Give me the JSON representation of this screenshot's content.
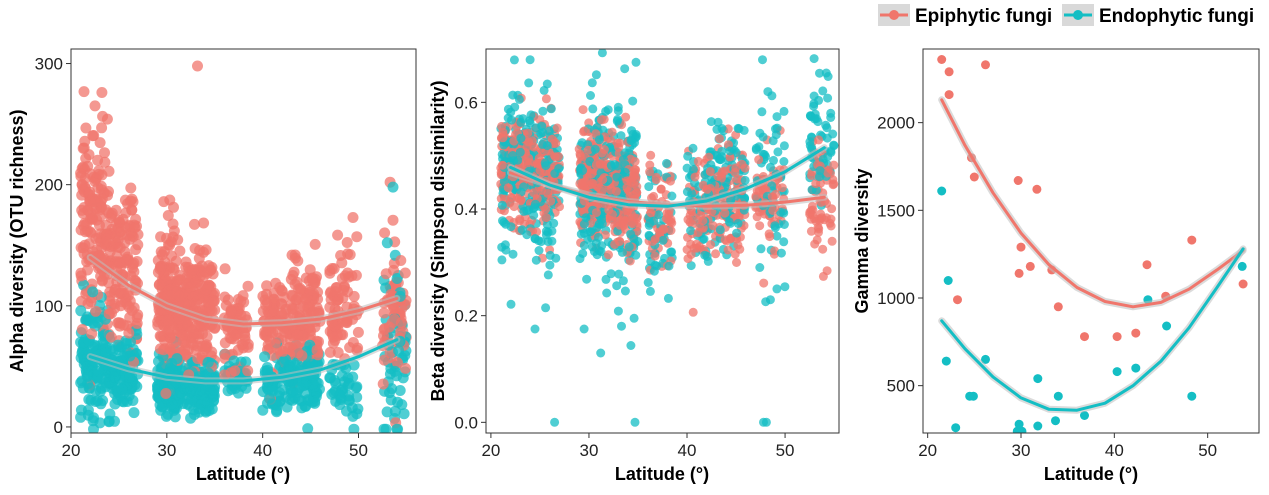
{
  "colors": {
    "epiphytic": "#F0766C",
    "endophytic": "#14BEC4",
    "band": "#BDBDBD"
  },
  "legend": {
    "items": [
      {
        "label": "Epiphytic fungi",
        "series": "epiphytic"
      },
      {
        "label": "Endophytic fungi",
        "series": "endophytic"
      }
    ],
    "placement": "top-right"
  },
  "chart_data": [
    {
      "type": "scatter",
      "xlabel": "Latitude (°)",
      "ylabel": "Alpha diversity (OTU richness)",
      "xlim": [
        20,
        56
      ],
      "ylim": [
        -5,
        312
      ],
      "xticks": [
        20,
        30,
        40,
        50
      ],
      "yticks": [
        0,
        100,
        200,
        300
      ],
      "grid": false,
      "clusters": [
        {
          "series": "epiphytic",
          "x": [
            21,
            24
          ],
          "y_mean": 170,
          "y_sd": 42,
          "n": 160
        },
        {
          "series": "epiphytic",
          "x": [
            24,
            27
          ],
          "y_mean": 130,
          "y_sd": 38,
          "n": 130
        },
        {
          "series": "epiphytic",
          "x": [
            29,
            31.5
          ],
          "y_mean": 105,
          "y_sd": 30,
          "n": 170
        },
        {
          "series": "epiphytic",
          "x": [
            31.5,
            35
          ],
          "y_mean": 95,
          "y_sd": 28,
          "n": 190
        },
        {
          "series": "epiphytic",
          "x": [
            36,
            38.5
          ],
          "y_mean": 85,
          "y_sd": 18,
          "n": 70
        },
        {
          "series": "epiphytic",
          "x": [
            40,
            43
          ],
          "y_mean": 82,
          "y_sd": 18,
          "n": 90
        },
        {
          "series": "epiphytic",
          "x": [
            43,
            46
          ],
          "y_mean": 95,
          "y_sd": 22,
          "n": 110
        },
        {
          "series": "epiphytic",
          "x": [
            47,
            50
          ],
          "y_mean": 102,
          "y_sd": 25,
          "n": 80
        },
        {
          "series": "epiphytic",
          "x": [
            52.5,
            55
          ],
          "y_mean": 95,
          "y_sd": 28,
          "n": 70
        },
        {
          "series": "endophytic",
          "x": [
            21,
            24
          ],
          "y_mean": 55,
          "y_sd": 22,
          "n": 130
        },
        {
          "series": "endophytic",
          "x": [
            24,
            27
          ],
          "y_mean": 45,
          "y_sd": 15,
          "n": 120
        },
        {
          "series": "endophytic",
          "x": [
            29,
            31.5
          ],
          "y_mean": 35,
          "y_sd": 12,
          "n": 140
        },
        {
          "series": "endophytic",
          "x": [
            31.5,
            35
          ],
          "y_mean": 35,
          "y_sd": 10,
          "n": 160
        },
        {
          "series": "endophytic",
          "x": [
            36,
            38.5
          ],
          "y_mean": 42,
          "y_sd": 8,
          "n": 40
        },
        {
          "series": "endophytic",
          "x": [
            40,
            43
          ],
          "y_mean": 38,
          "y_sd": 12,
          "n": 70
        },
        {
          "series": "endophytic",
          "x": [
            43,
            46
          ],
          "y_mean": 40,
          "y_sd": 14,
          "n": 90
        },
        {
          "series": "endophytic",
          "x": [
            47,
            50
          ],
          "y_mean": 30,
          "y_sd": 12,
          "n": 40
        },
        {
          "series": "endophytic",
          "x": [
            52.5,
            55
          ],
          "y_mean": 60,
          "y_sd": 38,
          "n": 55
        }
      ],
      "extra_points": [
        {
          "series": "epiphytic",
          "x": 33.2,
          "y": 298
        },
        {
          "series": "epiphytic",
          "x": 22.5,
          "y": 265
        },
        {
          "series": "epiphytic",
          "x": 53.3,
          "y": 202
        },
        {
          "series": "endophytic",
          "x": 53.6,
          "y": 198
        },
        {
          "series": "endophytic",
          "x": 53,
          "y": 152
        },
        {
          "series": "endophytic",
          "x": 21,
          "y": 8
        }
      ],
      "trend": [
        {
          "series": "epiphytic",
          "x": [
            22,
            26,
            30,
            34,
            38,
            42,
            46,
            50,
            54
          ],
          "y": [
            140,
            117,
            100,
            89,
            85,
            86,
            89,
            96,
            106
          ]
        },
        {
          "series": "endophytic",
          "x": [
            22,
            26,
            30,
            34,
            38,
            42,
            46,
            50,
            54
          ],
          "y": [
            58,
            48,
            41,
            38,
            38,
            41,
            47,
            58,
            72
          ]
        }
      ]
    },
    {
      "type": "scatter",
      "xlabel": "Latitude (°)",
      "ylabel": "Beta diversity (Simpson dissimilarity)",
      "xlim": [
        19.5,
        55.5
      ],
      "ylim": [
        -0.02,
        0.7
      ],
      "xticks": [
        20,
        30,
        40,
        50
      ],
      "yticks": [
        0.0,
        0.2,
        0.4,
        0.6
      ],
      "ytick_labels": [
        "0.0",
        "0.2",
        "0.4",
        "0.6"
      ],
      "grid": false,
      "clusters": [
        {
          "series": "epiphytic",
          "x": [
            21,
            24
          ],
          "y_mean": 0.48,
          "y_sd": 0.05,
          "n": 150
        },
        {
          "series": "epiphytic",
          "x": [
            24,
            27
          ],
          "y_mean": 0.47,
          "y_sd": 0.05,
          "n": 130
        },
        {
          "series": "epiphytic",
          "x": [
            29,
            31.5
          ],
          "y_mean": 0.45,
          "y_sd": 0.05,
          "n": 150
        },
        {
          "series": "epiphytic",
          "x": [
            31.5,
            35
          ],
          "y_mean": 0.43,
          "y_sd": 0.05,
          "n": 170
        },
        {
          "series": "epiphytic",
          "x": [
            36,
            38.5
          ],
          "y_mean": 0.38,
          "y_sd": 0.05,
          "n": 60
        },
        {
          "series": "epiphytic",
          "x": [
            40,
            43
          ],
          "y_mean": 0.4,
          "y_sd": 0.05,
          "n": 80
        },
        {
          "series": "epiphytic",
          "x": [
            43,
            46
          ],
          "y_mean": 0.42,
          "y_sd": 0.05,
          "n": 90
        },
        {
          "series": "epiphytic",
          "x": [
            47,
            50
          ],
          "y_mean": 0.42,
          "y_sd": 0.05,
          "n": 70
        },
        {
          "series": "epiphytic",
          "x": [
            52.5,
            55
          ],
          "y_mean": 0.42,
          "y_sd": 0.06,
          "n": 60
        },
        {
          "series": "endophytic",
          "x": [
            21,
            24
          ],
          "y_mean": 0.47,
          "y_sd": 0.08,
          "n": 130
        },
        {
          "series": "endophytic",
          "x": [
            24,
            27
          ],
          "y_mean": 0.45,
          "y_sd": 0.08,
          "n": 110
        },
        {
          "series": "endophytic",
          "x": [
            29,
            31.5
          ],
          "y_mean": 0.45,
          "y_sd": 0.08,
          "n": 130
        },
        {
          "series": "endophytic",
          "x": [
            31.5,
            35
          ],
          "y_mean": 0.43,
          "y_sd": 0.08,
          "n": 150
        },
        {
          "series": "endophytic",
          "x": [
            36,
            38.5
          ],
          "y_mean": 0.36,
          "y_sd": 0.06,
          "n": 50
        },
        {
          "series": "endophytic",
          "x": [
            40,
            43
          ],
          "y_mean": 0.42,
          "y_sd": 0.06,
          "n": 70
        },
        {
          "series": "endophytic",
          "x": [
            43,
            46
          ],
          "y_mean": 0.45,
          "y_sd": 0.06,
          "n": 90
        },
        {
          "series": "endophytic",
          "x": [
            47,
            50
          ],
          "y_mean": 0.45,
          "y_sd": 0.08,
          "n": 60
        },
        {
          "series": "endophytic",
          "x": [
            52.5,
            55
          ],
          "y_mean": 0.52,
          "y_sd": 0.06,
          "n": 60
        }
      ],
      "extra_points": [
        {
          "series": "endophytic",
          "x": 26.5,
          "y": 0.0
        },
        {
          "series": "endophytic",
          "x": 34.7,
          "y": 0.0
        },
        {
          "series": "endophytic",
          "x": 47.8,
          "y": 0.0
        },
        {
          "series": "endophytic",
          "x": 48.1,
          "y": 0.0
        },
        {
          "series": "endophytic",
          "x": 24.0,
          "y": 0.68
        },
        {
          "series": "endophytic",
          "x": 34.8,
          "y": 0.675
        },
        {
          "series": "endophytic",
          "x": 47.7,
          "y": 0.68
        },
        {
          "series": "endophytic",
          "x": 54.2,
          "y": 0.655
        },
        {
          "series": "endophytic",
          "x": 24.5,
          "y": 0.175
        },
        {
          "series": "endophytic",
          "x": 29.5,
          "y": 0.175
        },
        {
          "series": "endophytic",
          "x": 31.2,
          "y": 0.13
        },
        {
          "series": "endophytic",
          "x": 34.6,
          "y": 0.195
        },
        {
          "series": "endophytic",
          "x": 48.5,
          "y": 0.23
        }
      ],
      "trend": [
        {
          "series": "epiphytic",
          "x": [
            22,
            26,
            30,
            34,
            38,
            42,
            46,
            50,
            54
          ],
          "y": [
            0.468,
            0.445,
            0.426,
            0.414,
            0.408,
            0.405,
            0.407,
            0.413,
            0.422
          ]
        },
        {
          "series": "endophytic",
          "x": [
            22,
            26,
            30,
            34,
            38,
            42,
            46,
            50,
            54
          ],
          "y": [
            0.478,
            0.445,
            0.422,
            0.408,
            0.405,
            0.415,
            0.438,
            0.47,
            0.515
          ]
        }
      ]
    },
    {
      "type": "scatter",
      "xlabel": "Latitude (°)",
      "ylabel": "Gamma diversity",
      "xlim": [
        19.5,
        55.5
      ],
      "ylim": [
        230,
        2420
      ],
      "xticks": [
        20,
        30,
        40,
        50
      ],
      "yticks": [
        500,
        1000,
        1500,
        2000
      ],
      "grid": false,
      "points": [
        {
          "series": "epiphytic",
          "x": 21.5,
          "y": 2360
        },
        {
          "series": "epiphytic",
          "x": 22.3,
          "y": 2290
        },
        {
          "series": "epiphytic",
          "x": 22.3,
          "y": 2160
        },
        {
          "series": "epiphytic",
          "x": 26.2,
          "y": 2330
        },
        {
          "series": "epiphytic",
          "x": 24.7,
          "y": 1800
        },
        {
          "series": "epiphytic",
          "x": 25.0,
          "y": 1690
        },
        {
          "series": "epiphytic",
          "x": 23.2,
          "y": 990
        },
        {
          "series": "epiphytic",
          "x": 29.7,
          "y": 1670
        },
        {
          "series": "epiphytic",
          "x": 31.7,
          "y": 1620
        },
        {
          "series": "epiphytic",
          "x": 30.0,
          "y": 1290
        },
        {
          "series": "epiphytic",
          "x": 31.0,
          "y": 1180
        },
        {
          "series": "epiphytic",
          "x": 29.8,
          "y": 1140
        },
        {
          "series": "epiphytic",
          "x": 33.3,
          "y": 1160
        },
        {
          "series": "epiphytic",
          "x": 34.0,
          "y": 950
        },
        {
          "series": "epiphytic",
          "x": 36.8,
          "y": 780
        },
        {
          "series": "epiphytic",
          "x": 40.3,
          "y": 780
        },
        {
          "series": "epiphytic",
          "x": 42.3,
          "y": 800
        },
        {
          "series": "epiphytic",
          "x": 43.5,
          "y": 1190
        },
        {
          "series": "epiphytic",
          "x": 45.5,
          "y": 1010
        },
        {
          "series": "epiphytic",
          "x": 48.3,
          "y": 1330
        },
        {
          "series": "epiphytic",
          "x": 53.8,
          "y": 1080
        },
        {
          "series": "endophytic",
          "x": 21.5,
          "y": 1610
        },
        {
          "series": "endophytic",
          "x": 22.2,
          "y": 1100
        },
        {
          "series": "endophytic",
          "x": 22.0,
          "y": 640
        },
        {
          "series": "endophytic",
          "x": 26.2,
          "y": 650
        },
        {
          "series": "endophytic",
          "x": 24.5,
          "y": 440
        },
        {
          "series": "endophytic",
          "x": 24.9,
          "y": 440
        },
        {
          "series": "endophytic",
          "x": 23.0,
          "y": 260
        },
        {
          "series": "endophytic",
          "x": 29.6,
          "y": 240
        },
        {
          "series": "endophytic",
          "x": 29.8,
          "y": 280
        },
        {
          "series": "endophytic",
          "x": 30.1,
          "y": 240
        },
        {
          "series": "endophytic",
          "x": 31.8,
          "y": 270
        },
        {
          "series": "endophytic",
          "x": 31.8,
          "y": 540
        },
        {
          "series": "endophytic",
          "x": 33.7,
          "y": 300
        },
        {
          "series": "endophytic",
          "x": 34.0,
          "y": 440
        },
        {
          "series": "endophytic",
          "x": 36.8,
          "y": 330
        },
        {
          "series": "endophytic",
          "x": 40.3,
          "y": 580
        },
        {
          "series": "endophytic",
          "x": 42.3,
          "y": 600
        },
        {
          "series": "endophytic",
          "x": 43.6,
          "y": 990
        },
        {
          "series": "endophytic",
          "x": 45.6,
          "y": 840
        },
        {
          "series": "endophytic",
          "x": 48.3,
          "y": 440
        },
        {
          "series": "endophytic",
          "x": 53.7,
          "y": 1180
        }
      ],
      "trend": [
        {
          "series": "epiphytic",
          "x": [
            21.5,
            24,
            27,
            30,
            33,
            36,
            39,
            42,
            45,
            48,
            51,
            53.8
          ],
          "y": [
            2130,
            1870,
            1600,
            1370,
            1190,
            1060,
            980,
            950,
            975,
            1050,
            1160,
            1270
          ]
        },
        {
          "series": "endophytic",
          "x": [
            21.5,
            24,
            27,
            30,
            33,
            36,
            39,
            42,
            45,
            48,
            51,
            53.8
          ],
          "y": [
            870,
            710,
            550,
            430,
            365,
            360,
            400,
            500,
            640,
            830,
            1060,
            1280
          ]
        }
      ]
    }
  ]
}
